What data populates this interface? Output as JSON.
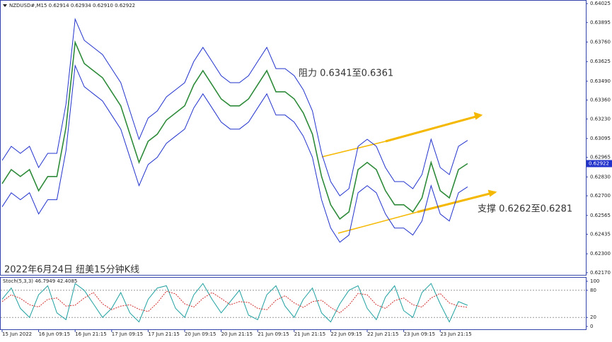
{
  "chart_data": [
    {
      "type": "line",
      "title": "NZDUSD#,M15  0.62914 0.62934 0.62910 0.62922",
      "annotations": [
        "阻力 0.6341至0.6361",
        "支撑 0.6262至0.6281",
        "2022年6月24日 纽美15分钟K线"
      ],
      "categories": [
        "15 Jun 2022",
        null,
        null,
        null,
        "16 Jun 09:15",
        null,
        null,
        null,
        "16 Jun 21:15",
        null,
        null,
        null,
        "17 Jun 09:15",
        null,
        null,
        null,
        "17 Jun 21:15",
        null,
        null,
        null,
        "20 Jun 09:15",
        null,
        null,
        null,
        "20 Jun 21:15",
        null,
        null,
        null,
        "21 Jun 09:15",
        null,
        null,
        null,
        "21 Jun 21:15",
        null,
        null,
        null,
        "22 Jun 09:15",
        null,
        null,
        null,
        "22 Jun 21:15",
        null,
        null,
        null,
        "23 Jun 09:15",
        null,
        null,
        null,
        "23 Jun 21:15",
        null,
        null,
        null
      ],
      "series": [
        {
          "color": "#2e8b3a",
          "values": [
            0.62784,
            0.62881,
            0.62833,
            0.62881,
            0.62735,
            0.62833,
            0.62833,
            0.63173,
            0.63758,
            0.63612,
            0.63563,
            0.63514,
            0.63417,
            0.6332,
            0.63125,
            0.6293,
            0.63076,
            0.63125,
            0.63222,
            0.63271,
            0.6332,
            0.63466,
            0.63563,
            0.63466,
            0.63368,
            0.6332,
            0.6332,
            0.63368,
            0.63466,
            0.63563,
            0.63417,
            0.63417,
            0.63368,
            0.63271,
            0.63125,
            0.62833,
            0.62638,
            0.6254,
            0.62589,
            0.62881,
            0.6293,
            0.62881,
            0.62735,
            0.62638,
            0.62638,
            0.62589,
            0.62686,
            0.6293,
            0.62735,
            0.62686,
            0.62881,
            0.62922
          ]
        },
        {
          "color": "#2233cc",
          "values": [
            0.62944,
            0.63041,
            0.62993,
            0.63041,
            0.62895,
            0.62993,
            0.62993,
            0.63333,
            0.63918,
            0.63772,
            0.63723,
            0.63674,
            0.63577,
            0.6348,
            0.63285,
            0.6309,
            0.63236,
            0.63285,
            0.63382,
            0.63431,
            0.6348,
            0.63626,
            0.63723,
            0.63626,
            0.63528,
            0.6348,
            0.6348,
            0.63528,
            0.63626,
            0.63723,
            0.63577,
            0.63577,
            0.63528,
            0.63431,
            0.63285,
            0.62993,
            0.62798,
            0.627,
            0.62749,
            0.63041,
            0.6309,
            0.63041,
            0.62895,
            0.62798,
            0.62798,
            0.62749,
            0.62846,
            0.6309,
            0.62895,
            0.62846,
            0.63041,
            0.63082
          ]
        },
        {
          "color": "#2233cc",
          "values": [
            0.62624,
            0.62721,
            0.62673,
            0.62721,
            0.62575,
            0.62673,
            0.62673,
            0.63013,
            0.63598,
            0.63452,
            0.63403,
            0.63354,
            0.63257,
            0.6316,
            0.62965,
            0.6277,
            0.62916,
            0.62965,
            0.63062,
            0.63111,
            0.6316,
            0.63306,
            0.63403,
            0.63306,
            0.63208,
            0.6316,
            0.6316,
            0.63208,
            0.63306,
            0.63403,
            0.63257,
            0.63257,
            0.63208,
            0.63111,
            0.62965,
            0.62673,
            0.62478,
            0.6238,
            0.62429,
            0.62721,
            0.6277,
            0.62721,
            0.62575,
            0.62478,
            0.62478,
            0.62429,
            0.62526,
            0.6277,
            0.62575,
            0.62526,
            0.62721,
            0.62762
          ]
        }
      ],
      "ylim": [
        0.6215,
        0.6405
      ],
      "yticks": [
        0.64025,
        0.63895,
        {
          "value": 0.6376,
          "label": "0.63760"
        },
        0.63625,
        {
          "value": 0.6349,
          "label": "0.63490"
        },
        {
          "value": 0.6336,
          "label": "0.63360"
        },
        {
          "value": 0.6323,
          "label": "0.63230"
        },
        0.63095,
        0.62965,
        {
          "value": 0.6283,
          "label": "0.62830"
        },
        {
          "value": 0.627,
          "label": "0.62700"
        },
        0.62565,
        0.62435,
        {
          "value": 0.623,
          "label": "0.62300"
        },
        {
          "value": 0.6217,
          "label": "0.62170"
        }
      ]
    },
    {
      "type": "line",
      "title": "Stoch(5,3,3) 46.7949 42.4085",
      "series": [
        {
          "color": "#20a0a0",
          "values": [
            60,
            85,
            40,
            20,
            70,
            90,
            30,
            15,
            95,
            80,
            50,
            20,
            40,
            75,
            30,
            10,
            60,
            85,
            90,
            40,
            20,
            70,
            95,
            60,
            30,
            55,
            80,
            25,
            15,
            70,
            90,
            45,
            20,
            60,
            85,
            30,
            10,
            50,
            80,
            90,
            40,
            15,
            65,
            90,
            35,
            20,
            75,
            95,
            50,
            10,
            55,
            46.7949
          ]
        },
        {
          "color": "#d03030",
          "values": [
            55,
            70,
            62,
            48,
            43,
            60,
            63,
            45,
            47,
            63,
            75,
            50,
            37,
            45,
            48,
            38,
            33,
            52,
            78,
            72,
            50,
            43,
            62,
            75,
            62,
            48,
            55,
            53,
            40,
            37,
            58,
            68,
            52,
            42,
            55,
            58,
            42,
            30,
            47,
            73,
            70,
            48,
            40,
            57,
            63,
            48,
            43,
            63,
            73,
            52,
            45,
            42.4085
          ]
        }
      ],
      "ylim": [
        0,
        100
      ],
      "yticks": [
        100,
        80,
        20,
        0
      ]
    }
  ]
}
